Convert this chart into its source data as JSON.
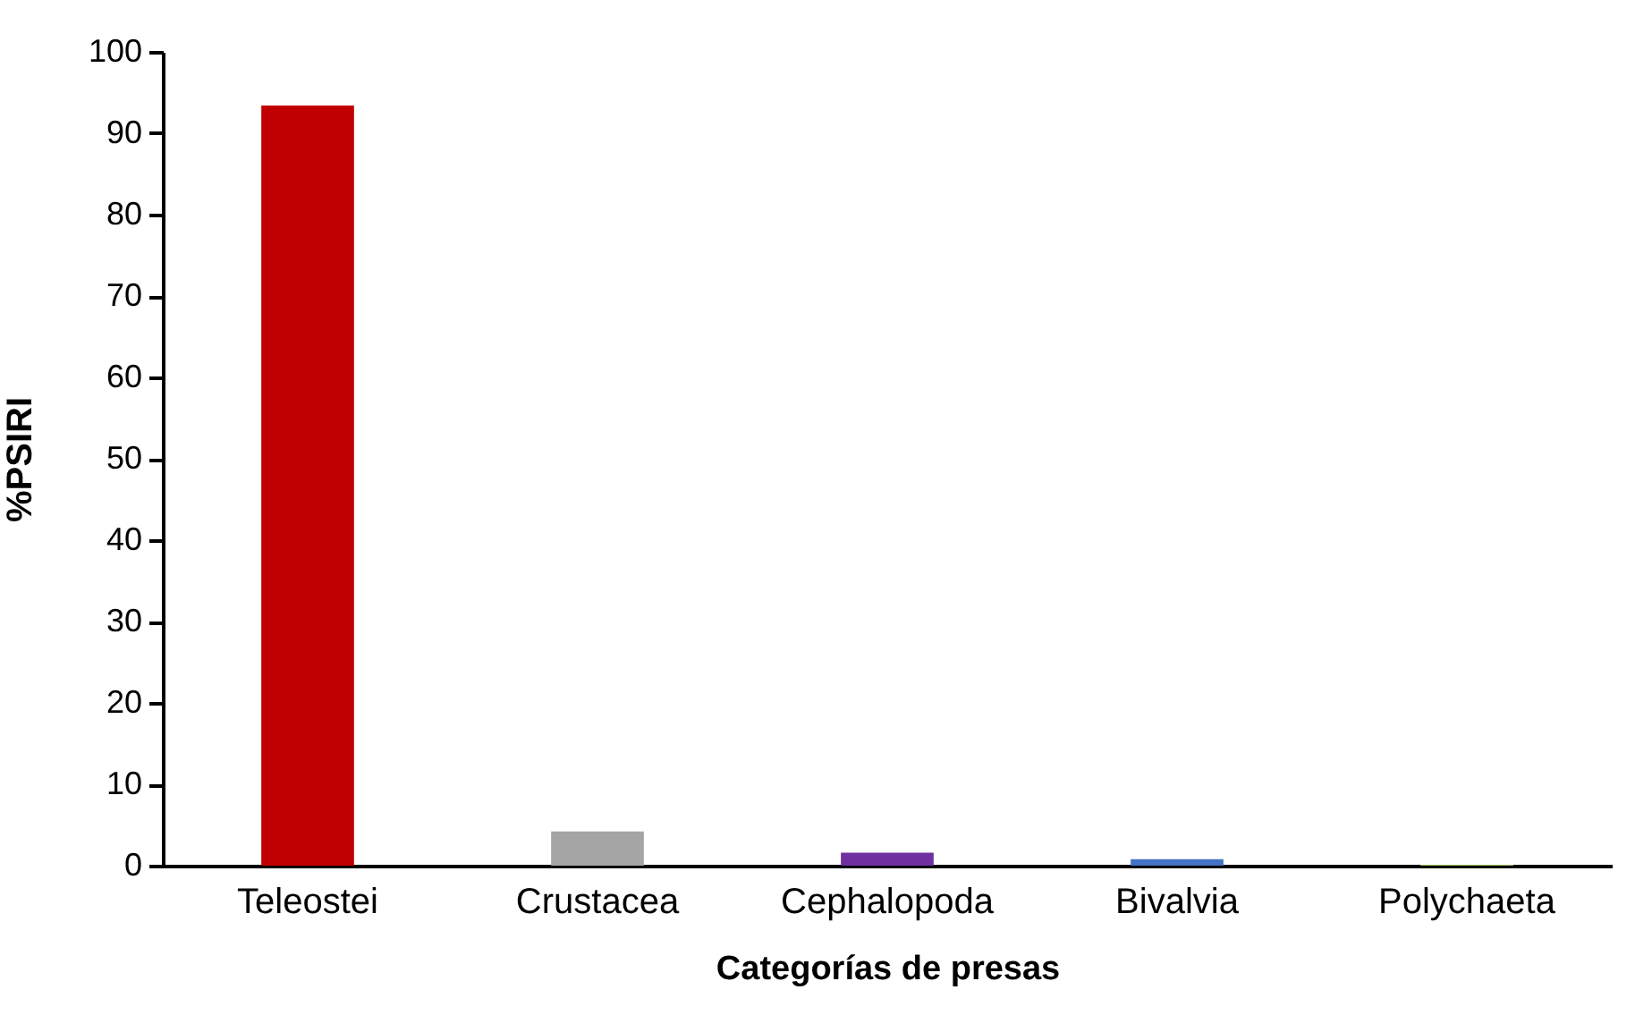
{
  "chart_data": {
    "type": "bar",
    "xlabel": "Categorías de presas",
    "ylabel": "%PSIRI",
    "categories": [
      "Teleostei",
      "Crustacea",
      "Cephalopoda",
      "Bivalvia",
      "Polychaeta"
    ],
    "values": [
      93.4,
      4.2,
      1.6,
      0.8,
      0.1
    ],
    "colors": [
      "#c00000",
      "#a5a5a5",
      "#7030a0",
      "#4472c4",
      "#9bbb59"
    ],
    "ylim": [
      0,
      100
    ],
    "yticks": [
      0,
      10,
      20,
      30,
      40,
      50,
      60,
      70,
      80,
      90,
      100
    ],
    "grid": false
  }
}
